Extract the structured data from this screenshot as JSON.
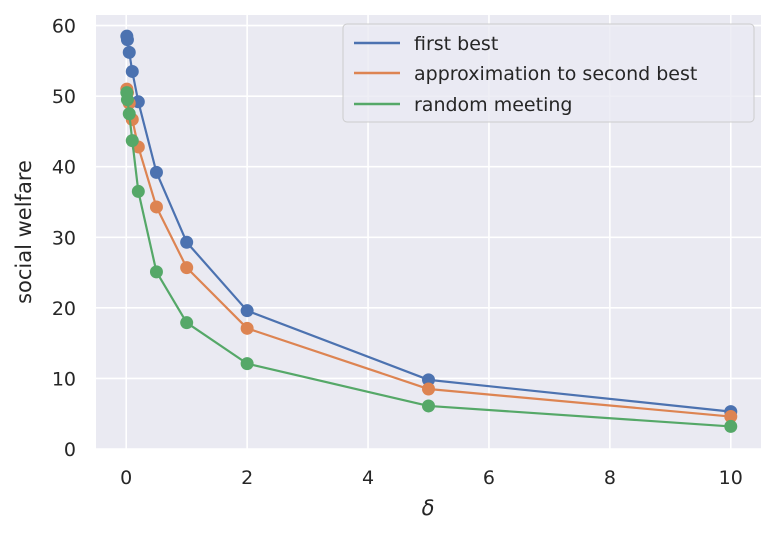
{
  "chart_data": {
    "type": "line",
    "xlabel": "δ",
    "ylabel": "social welfare",
    "xlim": [
      -0.5,
      10.5
    ],
    "ylim": [
      0,
      61.5
    ],
    "xticks": [
      0,
      2,
      4,
      6,
      8,
      10
    ],
    "yticks": [
      0,
      10,
      20,
      30,
      40,
      50,
      60
    ],
    "grid": true,
    "legend_position": "top-right",
    "x": [
      0.01,
      0.02,
      0.05,
      0.1,
      0.2,
      0.5,
      1,
      2,
      5,
      10
    ],
    "series": [
      {
        "name": "first best",
        "color": "#4c72b0",
        "values": [
          58.5,
          58.0,
          56.2,
          53.5,
          49.2,
          39.2,
          29.3,
          19.6,
          9.8,
          5.3
        ]
      },
      {
        "name": "approximation to second best",
        "color": "#dd8452",
        "values": [
          51.0,
          50.5,
          49.0,
          46.7,
          42.8,
          34.3,
          25.7,
          17.1,
          8.5,
          4.6
        ]
      },
      {
        "name": "random meeting",
        "color": "#55a868",
        "values": [
          50.5,
          49.5,
          47.5,
          43.7,
          36.5,
          25.1,
          17.9,
          12.1,
          6.1,
          3.2
        ]
      }
    ]
  }
}
